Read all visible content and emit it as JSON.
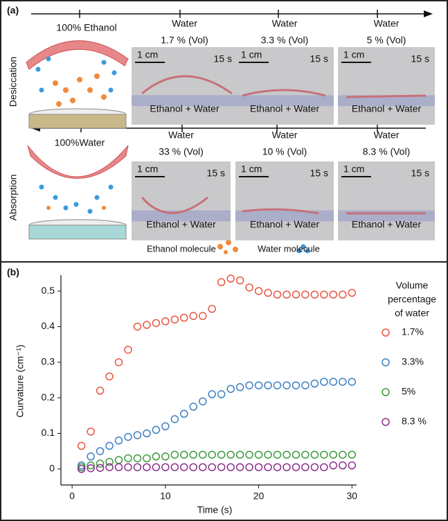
{
  "panel_a": {
    "label": "(a)",
    "desiccation": {
      "side_label": "Desiccation",
      "start_label": "100% Ethanol",
      "photos": [
        {
          "water": "Water",
          "volume": "1.7 % (Vol)",
          "scale": "1 cm",
          "time": "15 s",
          "caption": "Ethanol + Water"
        },
        {
          "water": "Water",
          "volume": "3.3 % (Vol)",
          "scale": "1 cm",
          "time": "15 s",
          "caption": "Ethanol + Water"
        },
        {
          "water": "Water",
          "volume": "5 % (Vol)",
          "scale": "1 cm",
          "time": "15 s",
          "caption": "Ethanol + Water"
        }
      ]
    },
    "absorption": {
      "side_label": "Absorption",
      "start_label": "100%Water",
      "photos": [
        {
          "water": "Water",
          "volume": "33 % (Vol)",
          "scale": "1 cm",
          "time": "15 s",
          "caption": "Ethanol + Water"
        },
        {
          "water": "Water",
          "volume": "10 % (Vol)",
          "scale": "1 cm",
          "time": "15 s",
          "caption": "Ethanol + Water"
        },
        {
          "water": "Water",
          "volume": "8.3 % (Vol)",
          "scale": "1 cm",
          "time": "15 s",
          "caption": "Ethanol + Water"
        }
      ]
    },
    "legend": [
      "Ethanol molecule",
      "Water molecule"
    ]
  },
  "chart_data": {
    "type": "scatter",
    "panel_label": "(b)",
    "x_label": "Time (s)",
    "y_label": "Curvature (cm⁻¹)",
    "legend_title": [
      "Volume",
      "percentage",
      "of water"
    ],
    "xlim": [
      -1.2,
      30.5
    ],
    "ylim": [
      -0.045,
      0.545
    ],
    "xticks": [
      0,
      10,
      20,
      30
    ],
    "yticks": [
      0,
      0.1,
      0.2,
      0.3,
      0.4,
      0.5
    ],
    "x": [
      1,
      2,
      3,
      4,
      5,
      6,
      7,
      8,
      9,
      10,
      11,
      12,
      13,
      14,
      15,
      16,
      17,
      18,
      19,
      20,
      21,
      22,
      23,
      24,
      25,
      26,
      27,
      28,
      29,
      30
    ],
    "series": [
      {
        "name": "1.7%",
        "color": "#e8553f",
        "values": [
          0.065,
          0.105,
          0.22,
          0.26,
          0.3,
          0.335,
          0.4,
          0.405,
          0.41,
          0.415,
          0.42,
          0.425,
          0.43,
          0.43,
          0.45,
          0.525,
          0.535,
          0.53,
          0.51,
          0.5,
          0.495,
          0.49,
          0.49,
          0.49,
          0.49,
          0.49,
          0.49,
          0.49,
          0.49,
          0.495
        ]
      },
      {
        "name": "3.3%",
        "color": "#3a7fc1",
        "values": [
          0.01,
          0.035,
          0.05,
          0.065,
          0.08,
          0.09,
          0.095,
          0.1,
          0.11,
          0.12,
          0.14,
          0.155,
          0.175,
          0.19,
          0.21,
          0.21,
          0.225,
          0.23,
          0.235,
          0.235,
          0.235,
          0.235,
          0.235,
          0.235,
          0.235,
          0.24,
          0.245,
          0.245,
          0.245,
          0.245
        ]
      },
      {
        "name": "5%",
        "color": "#3a9a3a",
        "values": [
          0.005,
          0.01,
          0.015,
          0.02,
          0.025,
          0.03,
          0.03,
          0.03,
          0.035,
          0.035,
          0.04,
          0.04,
          0.04,
          0.04,
          0.04,
          0.04,
          0.04,
          0.04,
          0.04,
          0.04,
          0.04,
          0.04,
          0.04,
          0.04,
          0.04,
          0.04,
          0.04,
          0.04,
          0.04,
          0.04
        ]
      },
      {
        "name": "8.3 %",
        "color": "#8b2e8b",
        "values": [
          0,
          0.002,
          0.003,
          0.005,
          0.005,
          0.005,
          0.005,
          0.005,
          0.005,
          0.005,
          0.005,
          0.005,
          0.005,
          0.005,
          0.005,
          0.005,
          0.005,
          0.005,
          0.005,
          0.005,
          0.005,
          0.005,
          0.005,
          0.005,
          0.005,
          0.005,
          0.005,
          0.01,
          0.01,
          0.01
        ]
      }
    ]
  }
}
